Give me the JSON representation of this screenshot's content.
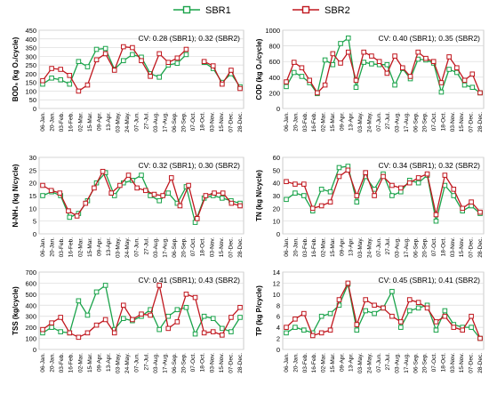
{
  "legend": [
    {
      "name": "SBR1",
      "color": "#1aa34a"
    },
    {
      "name": "SBR2",
      "color": "#c0171e"
    }
  ],
  "chart_data": [
    {
      "type": "line",
      "ylabel": "BOD₅ (kg O₂/cycle)",
      "ylim": [
        0,
        450
      ],
      "yticks": [
        0,
        50,
        100,
        150,
        200,
        250,
        300,
        350,
        400,
        450
      ],
      "annotation": "CV: 0.28 (SBR1); 0.32 (SBR2)",
      "grid": true,
      "x_ticklabels": [
        "06-Jan.",
        "20-Jan.",
        "03-Feb.",
        "16-Feb.",
        "02-Mar.",
        "15-Mar.",
        "09-Apr.",
        "13-Apr.",
        "03-May.",
        "24-May.",
        "07-Jun.",
        "27-Jul.",
        "03-Aug.",
        "17-Aug.",
        "06-Sep.",
        "20-Sep.",
        "07-Oct.",
        "18-Oct.",
        "03-Nov.",
        "15-Nov.",
        "07-Dec.",
        "28-Dec."
      ],
      "series": [
        {
          "name": "SBR1",
          "values": [
            140,
            175,
            165,
            140,
            270,
            240,
            340,
            345,
            225,
            275,
            310,
            295,
            200,
            180,
            250,
            260,
            310,
            null,
            265,
            230,
            150,
            200,
            125
          ]
        },
        {
          "name": "SBR2",
          "values": [
            160,
            230,
            225,
            190,
            100,
            135,
            280,
            315,
            220,
            355,
            350,
            275,
            185,
            315,
            265,
            290,
            340,
            null,
            270,
            245,
            140,
            220,
            115
          ]
        }
      ]
    },
    {
      "type": "line",
      "ylabel": "COD (kg O₂/cycle)",
      "ylim": [
        0,
        1000
      ],
      "yticks": [
        0,
        200,
        400,
        600,
        800,
        1000
      ],
      "annotation": "CV: 0.40 (SBR1); 0.35 (SBR2)",
      "grid": true,
      "x_ticklabels": [
        "06-Jan.",
        "20-Jan.",
        "03-Feb.",
        "16-Feb.",
        "02-Mar.",
        "15-Mar.",
        "09-Apr.",
        "13-Apr.",
        "03-May.",
        "24-May.",
        "07-Jun.",
        "27-Jul.",
        "03-Aug.",
        "17-Aug.",
        "06-Sep.",
        "20-Sep.",
        "07-Oct.",
        "18-Oct.",
        "03-Nov.",
        "15-Nov.",
        "07-Dec.",
        "28-Dec."
      ],
      "series": [
        {
          "name": "SBR1",
          "values": [
            280,
            460,
            410,
            330,
            190,
            620,
            560,
            830,
            900,
            270,
            590,
            570,
            560,
            560,
            300,
            510,
            380,
            630,
            620,
            580,
            210,
            500,
            460,
            300,
            270,
            200
          ]
        },
        {
          "name": "SBR2",
          "values": [
            340,
            590,
            520,
            360,
            200,
            300,
            700,
            580,
            720,
            360,
            720,
            670,
            600,
            450,
            670,
            520,
            410,
            720,
            640,
            600,
            330,
            660,
            520,
            360,
            440,
            200
          ]
        }
      ]
    },
    {
      "type": "line",
      "ylabel": "N-NH₄ (kg N/cycle)",
      "ylim": [
        0,
        30
      ],
      "yticks": [
        0,
        5,
        10,
        15,
        20,
        25,
        30
      ],
      "annotation": "CV: 0.32 (SBR1); 0.30 (SBR2)",
      "grid": true,
      "x_ticklabels": [
        "06-Jan.",
        "20-Jan.",
        "03-Feb.",
        "16-Feb.",
        "02-Mar.",
        "15-Mar.",
        "09-Apr.",
        "13-Apr.",
        "03-May.",
        "24-May.",
        "07-Jun.",
        "27-Jul.",
        "03-Aug.",
        "17-Aug.",
        "06-Sep.",
        "20-Sep.",
        "07-Oct.",
        "18-Oct.",
        "03-Nov.",
        "15-Nov.",
        "07-Dec.",
        "28-Dec."
      ],
      "series": [
        {
          "name": "SBR1",
          "values": [
            15,
            16.5,
            15,
            6.5,
            8,
            13,
            20,
            24,
            15,
            20,
            21,
            23,
            15,
            13,
            16,
            12,
            18.5,
            4.5,
            14,
            15,
            14,
            13,
            12
          ]
        },
        {
          "name": "SBR2",
          "values": [
            19,
            17,
            16,
            9,
            7,
            12,
            18,
            24.5,
            16,
            19,
            23,
            18,
            17,
            15.5,
            15,
            22,
            11,
            19,
            6,
            15,
            16,
            16,
            12,
            11
          ]
        }
      ]
    },
    {
      "type": "line",
      "ylabel": "TN (kg N/cycle)",
      "ylim": [
        0,
        60
      ],
      "yticks": [
        0,
        10,
        20,
        30,
        40,
        50,
        60
      ],
      "annotation": "CV: 0.34 (SBR1); 0.32 (SBR2)",
      "grid": true,
      "x_ticklabels": [
        "06-Jan.",
        "20-Jan.",
        "03-Feb.",
        "16-Feb.",
        "02-Mar.",
        "15-Mar.",
        "09-Apr.",
        "13-Apr.",
        "03-May.",
        "24-May.",
        "07-Jun.",
        "27-Jul.",
        "03-Aug.",
        "17-Aug.",
        "06-Sep.",
        "20-Sep.",
        "07-Oct.",
        "18-Oct.",
        "03-Nov.",
        "15-Nov.",
        "07-Dec.",
        "28-Dec."
      ],
      "series": [
        {
          "name": "SBR1",
          "values": [
            27,
            32,
            30,
            18,
            35,
            33,
            52,
            53,
            25,
            45,
            35,
            47,
            30,
            33,
            42,
            40,
            46,
            10,
            38,
            30,
            18,
            22,
            16
          ]
        },
        {
          "name": "SBR2",
          "values": [
            41,
            39,
            39,
            20,
            22,
            25,
            45,
            50,
            30,
            48,
            30,
            45,
            38,
            36,
            40,
            44,
            47,
            15,
            46,
            35,
            20,
            25,
            17
          ]
        }
      ]
    },
    {
      "type": "line",
      "ylabel": "TSS (kg/cycle)",
      "ylim": [
        0,
        700
      ],
      "yticks": [
        0,
        100,
        200,
        300,
        400,
        500,
        600,
        700
      ],
      "annotation": "CV: 0.41 (SBR1); 0.43 (SBR2)",
      "grid": true,
      "x_ticklabels": [
        "06-Jan.",
        "20-Jan.",
        "03-Feb.",
        "16-Feb.",
        "02-Mar.",
        "15-Mar.",
        "09-Apr.",
        "13-Apr.",
        "03-May.",
        "24-May.",
        "07-Jun.",
        "27-Jul.",
        "03-Aug.",
        "17-Aug.",
        "06-Sep.",
        "20-Sep.",
        "07-Oct.",
        "18-Oct.",
        "03-Nov.",
        "15-Nov.",
        "07-Dec.",
        "28-Dec."
      ],
      "series": [
        {
          "name": "SBR1",
          "values": [
            150,
            200,
            160,
            150,
            440,
            310,
            520,
            580,
            180,
            280,
            260,
            300,
            360,
            180,
            300,
            360,
            380,
            140,
            300,
            280,
            190,
            160,
            290
          ]
        },
        {
          "name": "SBR2",
          "values": [
            180,
            240,
            290,
            150,
            110,
            150,
            220,
            270,
            150,
            400,
            270,
            320,
            310,
            580,
            190,
            250,
            500,
            470,
            150,
            160,
            130,
            290,
            380
          ]
        }
      ]
    },
    {
      "type": "line",
      "ylabel": "TP (kg P/cycle)",
      "ylim": [
        0,
        14
      ],
      "yticks": [
        0,
        2,
        4,
        6,
        8,
        10,
        12,
        14
      ],
      "annotation": "CV: 0.45 (SBR1); 0.41 (SBR2)",
      "grid": true,
      "x_ticklabels": [
        "06-Jan.",
        "20-Jan.",
        "03-Feb.",
        "16-Feb.",
        "02-Mar.",
        "15-Mar.",
        "09-Apr.",
        "13-Apr.",
        "03-May.",
        "24-May.",
        "07-Jun.",
        "27-Jul.",
        "03-Aug.",
        "17-Aug.",
        "06-Sep.",
        "20-Sep.",
        "07-Oct.",
        "18-Oct.",
        "03-Nov.",
        "15-Nov.",
        "07-Dec.",
        "28-Dec."
      ],
      "series": [
        {
          "name": "SBR1",
          "values": [
            3,
            4,
            3.5,
            3,
            6,
            6.5,
            8,
            11.8,
            3.5,
            7,
            6.5,
            7.5,
            10.5,
            4,
            7,
            7.5,
            8,
            3.5,
            7,
            4.5,
            4,
            4,
            2
          ]
        },
        {
          "name": "SBR2",
          "values": [
            4,
            5.5,
            6.5,
            2.5,
            3,
            3.5,
            9,
            12,
            4.5,
            9,
            8,
            7.5,
            6,
            5,
            9,
            8.5,
            7.5,
            5,
            6,
            4,
            3.5,
            6,
            2
          ]
        }
      ]
    }
  ]
}
